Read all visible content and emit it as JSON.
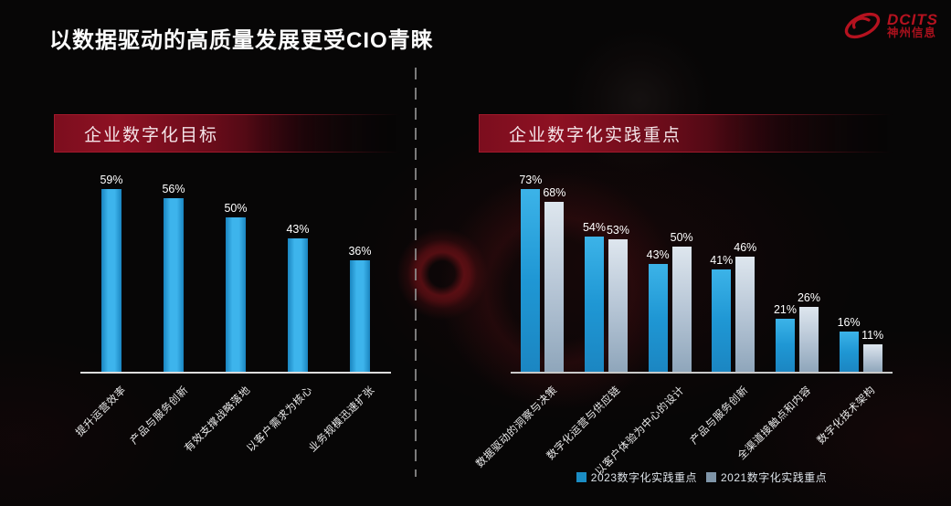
{
  "title": "以数据驱动的高质量发展更受CIO青睐",
  "logo": {
    "brand": "DCITS",
    "company": "神州信息",
    "color": "#b5121f"
  },
  "colors": {
    "banner_red": "#8e1123",
    "banner_border": "#a2182b",
    "bar_blue": "#29a6e0",
    "bar_gray": "#a9bccd",
    "axis_line": "#dcdcdc",
    "divider_gray": "#8f8f8f"
  },
  "chart_data": [
    {
      "type": "bar",
      "title": "企业数字化目标",
      "unit": "%",
      "grid": false,
      "legend_position": "none",
      "categories": [
        "提升运营效率",
        "产品与服务创新",
        "有效支撑战略落地",
        "以客户需求为核心",
        "业务规模迅速扩张"
      ],
      "values": [
        59,
        56,
        50,
        43,
        36
      ],
      "bar_colors": [
        "#1a85c0",
        "#3db4ec",
        "#3db4ec",
        "#1a85c0"
      ],
      "gradient_dir": "90deg"
    },
    {
      "type": "bar",
      "title": "企业数字化实践重点",
      "unit": "%",
      "grid": false,
      "legend_position": "bottom",
      "categories": [
        "数据驱动的洞察与决策",
        "数字化运营与供应链",
        "以客户体验为中心的设计",
        "产品与服务创新",
        "全渠道接触点和内容",
        "数字化技术架构"
      ],
      "series": [
        {
          "name": "2023数字化实践重点",
          "values": [
            73,
            54,
            43,
            41,
            21,
            16
          ],
          "colors": [
            "#3cb3e8",
            "#1f97d4",
            "#1b86c2"
          ],
          "legend_color": "#1b8dc4"
        },
        {
          "name": "2021数字化实践重点",
          "values": [
            68,
            53,
            50,
            46,
            26,
            11
          ],
          "colors": [
            "#dee6ee",
            "#b7c6d6",
            "#8fa6bb"
          ],
          "legend_color": "#7f95a8"
        }
      ]
    }
  ]
}
